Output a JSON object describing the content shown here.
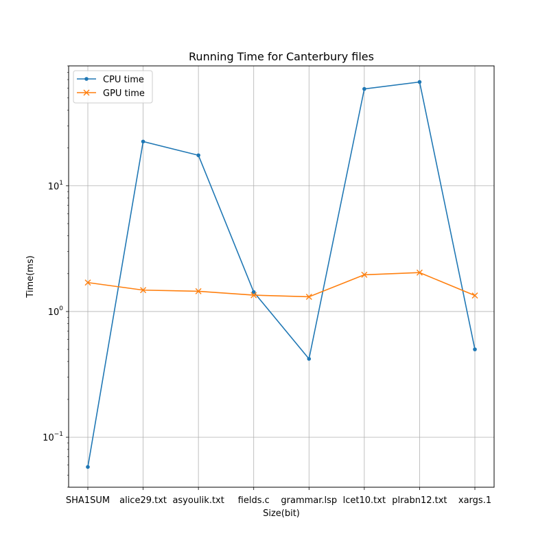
{
  "chart_data": {
    "type": "line",
    "title": "Running Time for Canterbury files",
    "xlabel": "Size(bit)",
    "ylabel": "Time(ms)",
    "yscale": "log",
    "ylim": [
      0.04,
      90
    ],
    "categories": [
      "SHA1SUM",
      "alice29.txt",
      "asyoulik.txt",
      "fields.c",
      "grammar.lsp",
      "lcet10.txt",
      "plrabn12.txt",
      "xargs.1"
    ],
    "yticks": [
      {
        "value": 0.1,
        "base": "10",
        "exp": "−1"
      },
      {
        "value": 1,
        "base": "10",
        "exp": "0"
      },
      {
        "value": 10,
        "base": "10",
        "exp": "1"
      }
    ],
    "series": [
      {
        "name": "CPU time",
        "color": "#1f77b4",
        "marker": "dot",
        "values": [
          0.058,
          22.5,
          17.5,
          1.43,
          0.42,
          59,
          67,
          0.5
        ]
      },
      {
        "name": "GPU time",
        "color": "#ff7f0e",
        "marker": "x",
        "values": [
          1.7,
          1.48,
          1.45,
          1.35,
          1.31,
          1.96,
          2.04,
          1.34
        ]
      }
    ],
    "grid": true,
    "legend": "upper-left"
  }
}
